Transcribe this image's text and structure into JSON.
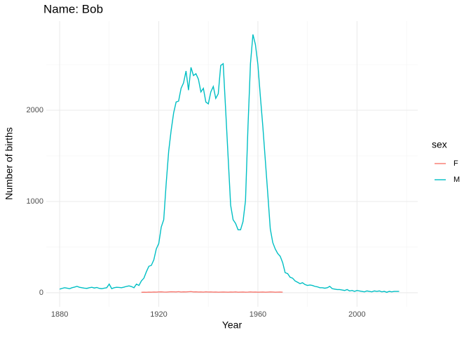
{
  "chart_data": {
    "type": "line",
    "title": "Name: Bob",
    "x_label": "Year",
    "y_label": "Number of births",
    "legend_title": "sex",
    "legend_position": "right",
    "grid": true,
    "xlim": [
      1874.6,
      2024.5
    ],
    "xticks": [
      1880,
      1920,
      1960,
      2000
    ],
    "ylim": [
      -154,
      2977
    ],
    "yticks": [
      0,
      1000,
      2000
    ],
    "series": [
      {
        "name": "F",
        "color": "#F8766D",
        "x": [
          1913,
          1914,
          1915,
          1916,
          1917,
          1918,
          1919,
          1920,
          1921,
          1922,
          1923,
          1924,
          1925,
          1926,
          1927,
          1928,
          1929,
          1930,
          1931,
          1932,
          1933,
          1934,
          1935,
          1936,
          1937,
          1938,
          1939,
          1940,
          1941,
          1942,
          1943,
          1944,
          1945,
          1946,
          1947,
          1948,
          1949,
          1950,
          1951,
          1952,
          1953,
          1954,
          1955,
          1956,
          1957,
          1958,
          1959,
          1960,
          1961,
          1962,
          1963,
          1964,
          1965,
          1966,
          1967,
          1968,
          1969,
          1970
        ],
        "values": [
          5,
          6,
          5,
          7,
          6,
          8,
          7,
          9,
          10,
          8,
          7,
          9,
          11,
          10,
          9,
          12,
          8,
          10,
          9,
          11,
          13,
          9,
          10,
          8,
          9,
          7,
          10,
          8,
          9,
          7,
          8,
          6,
          7,
          8,
          7,
          6,
          8,
          7,
          9,
          6,
          7,
          8,
          6,
          7,
          9,
          7,
          8,
          6,
          7,
          8,
          6,
          7,
          9,
          8,
          6,
          7,
          8,
          6
        ]
      },
      {
        "name": "M",
        "color": "#00BFC4",
        "x": [
          1880,
          1881,
          1882,
          1883,
          1884,
          1885,
          1886,
          1887,
          1888,
          1889,
          1890,
          1891,
          1892,
          1893,
          1894,
          1895,
          1896,
          1897,
          1898,
          1899,
          1900,
          1901,
          1902,
          1903,
          1904,
          1905,
          1906,
          1907,
          1908,
          1909,
          1910,
          1911,
          1912,
          1913,
          1914,
          1915,
          1916,
          1917,
          1918,
          1919,
          1920,
          1921,
          1922,
          1923,
          1924,
          1925,
          1926,
          1927,
          1928,
          1929,
          1930,
          1931,
          1932,
          1933,
          1934,
          1935,
          1936,
          1937,
          1938,
          1939,
          1940,
          1941,
          1942,
          1943,
          1944,
          1945,
          1946,
          1947,
          1948,
          1949,
          1950,
          1951,
          1952,
          1953,
          1954,
          1955,
          1956,
          1957,
          1958,
          1959,
          1960,
          1961,
          1962,
          1963,
          1964,
          1965,
          1966,
          1967,
          1968,
          1969,
          1970,
          1971,
          1972,
          1973,
          1974,
          1975,
          1976,
          1977,
          1978,
          1979,
          1980,
          1981,
          1982,
          1983,
          1984,
          1985,
          1986,
          1987,
          1988,
          1989,
          1990,
          1991,
          1992,
          1993,
          1994,
          1995,
          1996,
          1997,
          1998,
          1999,
          2000,
          2001,
          2002,
          2003,
          2004,
          2005,
          2006,
          2007,
          2008,
          2009,
          2010,
          2011,
          2012,
          2013,
          2014,
          2015,
          2016,
          2017
        ],
        "values": [
          40,
          48,
          55,
          50,
          45,
          55,
          62,
          70,
          60,
          55,
          50,
          48,
          55,
          60,
          52,
          58,
          48,
          45,
          50,
          55,
          95,
          45,
          55,
          60,
          58,
          55,
          62,
          70,
          75,
          68,
          55,
          95,
          80,
          130,
          160,
          230,
          290,
          300,
          360,
          480,
          540,
          720,
          800,
          1200,
          1550,
          1780,
          1970,
          2090,
          2100,
          2240,
          2300,
          2430,
          2220,
          2470,
          2380,
          2400,
          2340,
          2200,
          2240,
          2090,
          2070,
          2200,
          2260,
          2130,
          2180,
          2490,
          2510,
          2000,
          1480,
          960,
          800,
          760,
          690,
          690,
          780,
          1010,
          1820,
          2510,
          2830,
          2720,
          2500,
          2150,
          1820,
          1450,
          1080,
          700,
          550,
          480,
          430,
          400,
          330,
          220,
          210,
          170,
          160,
          130,
          115,
          100,
          110,
          90,
          80,
          85,
          80,
          70,
          65,
          55,
          55,
          50,
          55,
          70,
          45,
          40,
          35,
          35,
          30,
          25,
          35,
          20,
          25,
          15,
          25,
          20,
          15,
          10,
          20,
          15,
          10,
          20,
          15,
          20,
          10,
          15,
          5,
          15,
          10,
          15,
          15,
          15
        ]
      }
    ]
  }
}
